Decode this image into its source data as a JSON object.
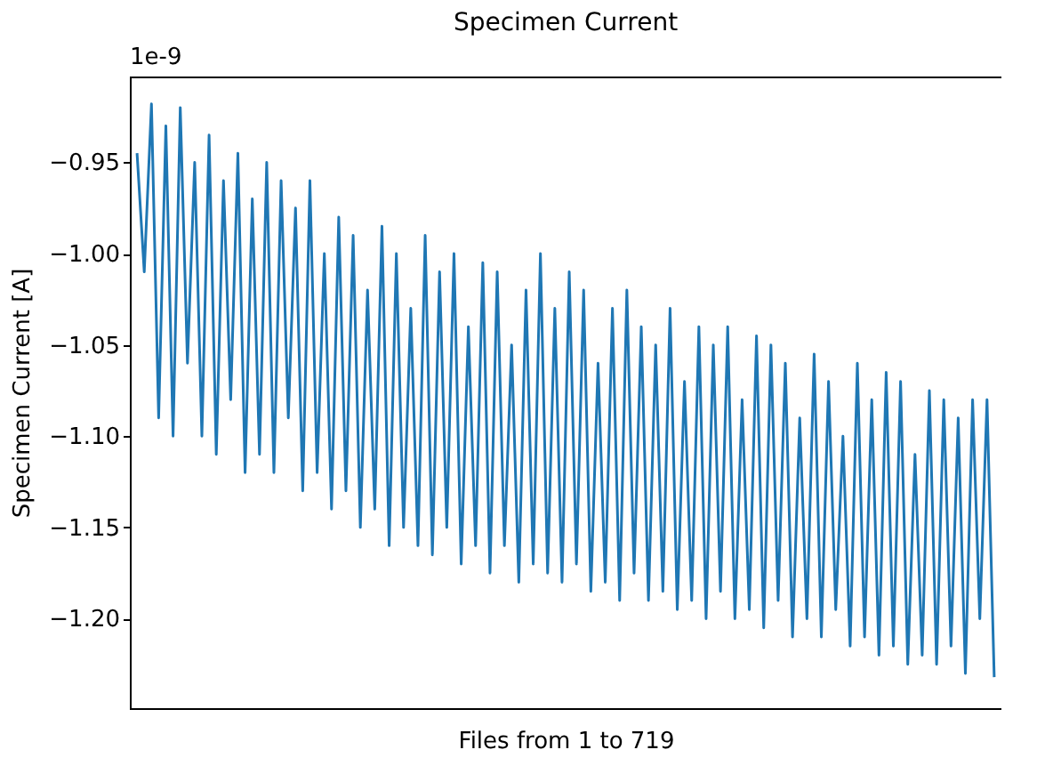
{
  "chart_data": {
    "type": "line",
    "title": "Specimen Current",
    "xlabel": "Files from 1 to 719",
    "ylabel": "Specimen Current [A]",
    "annotations": [
      "1e-9"
    ],
    "categories": [
      null,
      null,
      null,
      null,
      null,
      null,
      null,
      null,
      null,
      null,
      null,
      null,
      null,
      null,
      null,
      null,
      null,
      null,
      null,
      null,
      null,
      null,
      null,
      null,
      null,
      null,
      null,
      null,
      null,
      null,
      null,
      null,
      null,
      null,
      null,
      null,
      null,
      null,
      null,
      null,
      null,
      null,
      null,
      null,
      null,
      null,
      null,
      null,
      null,
      null,
      null,
      null,
      null,
      null,
      null,
      null,
      null,
      null,
      null,
      null,
      null,
      null,
      null,
      null,
      null,
      null,
      null,
      null,
      null,
      null,
      null,
      null,
      null,
      null,
      null,
      null,
      null,
      null,
      null,
      null,
      null,
      null,
      null,
      null,
      null,
      null,
      null,
      null,
      null,
      null,
      null,
      null,
      null,
      null,
      null,
      null,
      null,
      null,
      null,
      null,
      null,
      null,
      null,
      null,
      null,
      null,
      null,
      null,
      null,
      null,
      null,
      null,
      null,
      null,
      null,
      null,
      null,
      null,
      null,
      null
    ],
    "series": [
      {
        "color": "#1f77b4",
        "values": [
          -0.945,
          -1.01,
          -0.918,
          -1.09,
          -0.93,
          -1.1,
          -0.92,
          -1.06,
          -0.95,
          -1.1,
          -0.935,
          -1.11,
          -0.96,
          -1.08,
          -0.945,
          -1.12,
          -0.97,
          -1.11,
          -0.95,
          -1.12,
          -0.96,
          -1.09,
          -0.975,
          -1.13,
          -0.96,
          -1.12,
          -1.0,
          -1.14,
          -0.98,
          -1.13,
          -0.99,
          -1.15,
          -1.02,
          -1.14,
          -0.985,
          -1.16,
          -1.0,
          -1.15,
          -1.03,
          -1.16,
          -0.99,
          -1.165,
          -1.01,
          -1.15,
          -1.0,
          -1.17,
          -1.04,
          -1.16,
          -1.005,
          -1.175,
          -1.01,
          -1.16,
          -1.05,
          -1.18,
          -1.02,
          -1.17,
          -1.0,
          -1.175,
          -1.03,
          -1.18,
          -1.01,
          -1.17,
          -1.02,
          -1.185,
          -1.06,
          -1.18,
          -1.03,
          -1.19,
          -1.02,
          -1.175,
          -1.04,
          -1.19,
          -1.05,
          -1.185,
          -1.03,
          -1.195,
          -1.07,
          -1.19,
          -1.04,
          -1.2,
          -1.05,
          -1.185,
          -1.04,
          -1.2,
          -1.08,
          -1.195,
          -1.045,
          -1.205,
          -1.05,
          -1.19,
          -1.06,
          -1.21,
          -1.09,
          -1.2,
          -1.055,
          -1.21,
          -1.07,
          -1.195,
          -1.1,
          -1.215,
          -1.06,
          -1.21,
          -1.08,
          -1.22,
          -1.065,
          -1.215,
          -1.07,
          -1.225,
          -1.11,
          -1.22,
          -1.075,
          -1.225,
          -1.08,
          -1.215,
          -1.09,
          -1.23,
          -1.08,
          -1.2,
          -1.08,
          -1.232
        ]
      }
    ],
    "ylim": [
      -1.249,
      -0.903
    ],
    "yticks": [
      {
        "value": -0.95,
        "label": "−0.95"
      },
      {
        "value": -1.0,
        "label": "−1.00"
      },
      {
        "value": -1.05,
        "label": "−1.05"
      },
      {
        "value": -1.1,
        "label": "−1.10"
      },
      {
        "value": -1.15,
        "label": "−1.15"
      },
      {
        "value": -1.2,
        "label": "−1.20"
      }
    ],
    "tick_labels": "y",
    "grid": false
  }
}
